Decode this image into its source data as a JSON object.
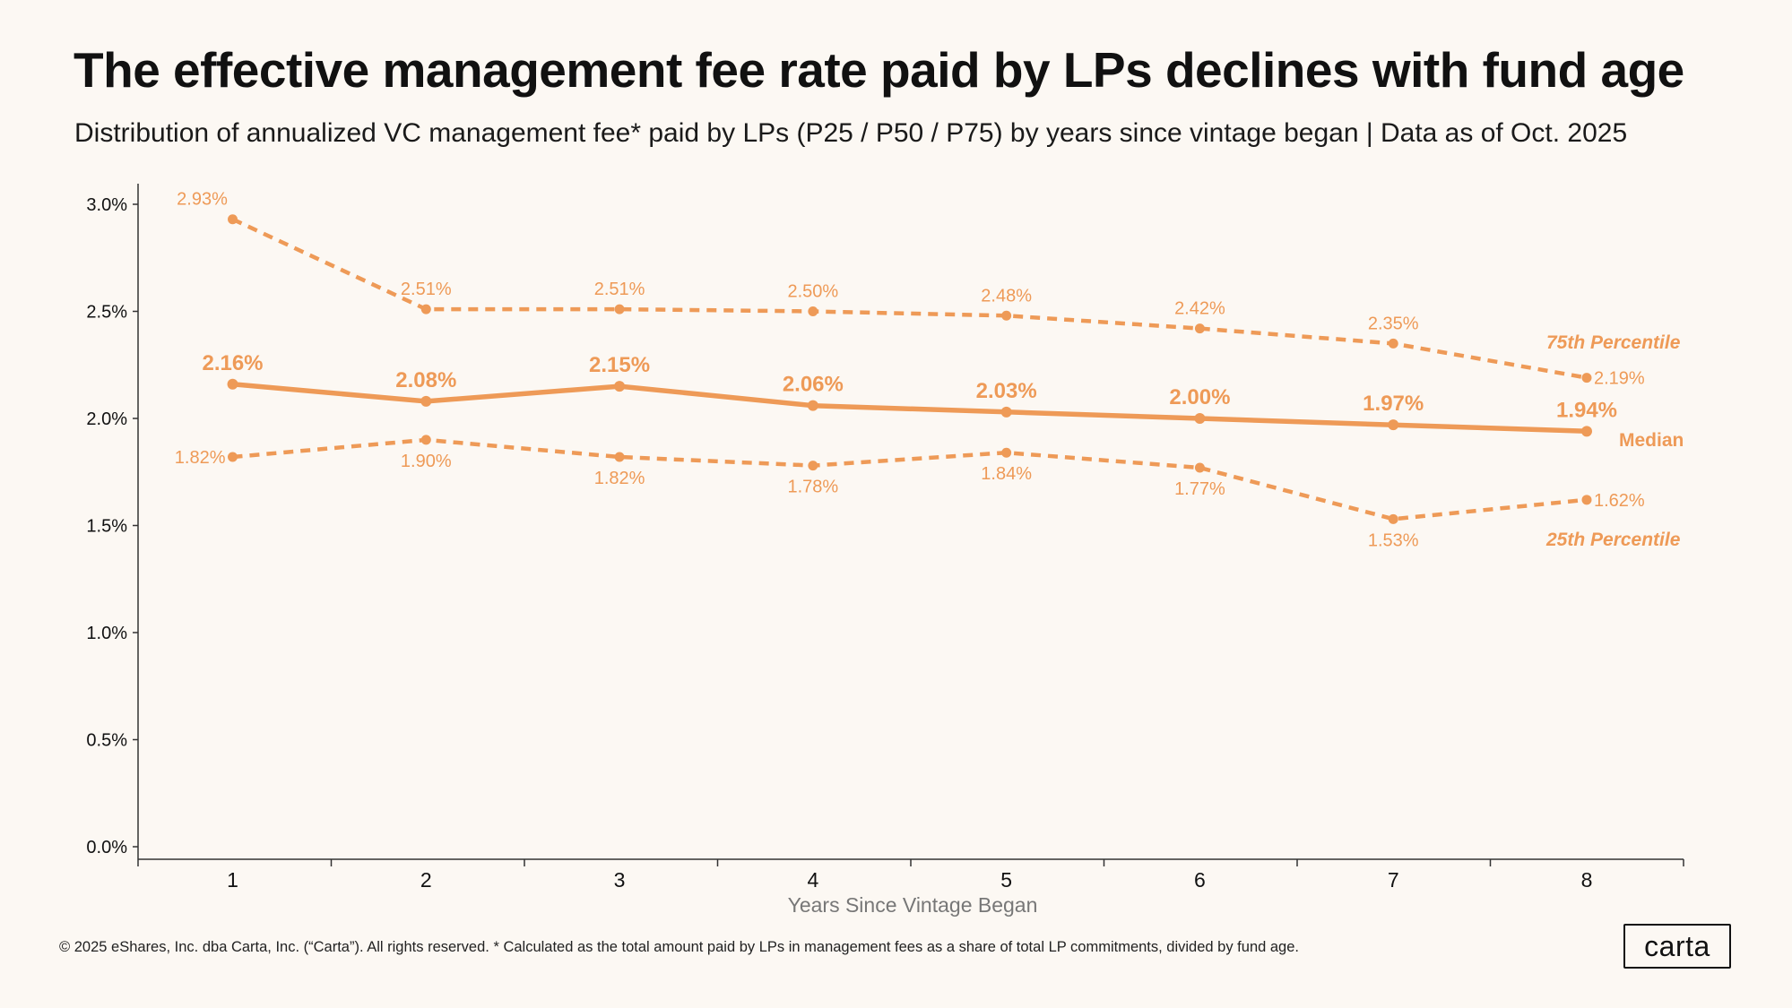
{
  "title": "The effective management fee rate paid by LPs declines with fund age",
  "subtitle": "Distribution of annualized VC management fee* paid by LPs (P25 / P50 / P75) by years since vintage began | Data as of Oct. 2025",
  "footer": "© 2025 eShares, Inc. dba Carta, Inc. (“Carta”). All rights reserved.  * Calculated as the total amount paid by LPs in management fees as a share of total LP commitments, divided by fund age.",
  "logo": "carta",
  "colors": {
    "series": "#ee9a57",
    "axis": "#333333",
    "background": "#fcf8f3"
  },
  "chart_data": {
    "type": "line",
    "title": "The effective management fee rate paid by LPs declines with fund age",
    "xlabel": "Years Since Vintage Began",
    "ylabel": "",
    "categories": [
      "1",
      "2",
      "3",
      "4",
      "5",
      "6",
      "7",
      "8"
    ],
    "ylim": [
      0,
      3.0
    ],
    "yticks": [
      "0.0%",
      "0.5%",
      "1.0%",
      "1.5%",
      "2.0%",
      "2.5%",
      "3.0%"
    ],
    "ytick_values": [
      0,
      0.5,
      1.0,
      1.5,
      2.0,
      2.5,
      3.0
    ],
    "grid": false,
    "series": [
      {
        "name": "75th Percentile",
        "style": "dashed",
        "values": [
          2.93,
          2.51,
          2.51,
          2.5,
          2.48,
          2.42,
          2.35,
          2.19
        ],
        "labels": [
          "2.93%",
          "2.51%",
          "2.51%",
          "2.50%",
          "2.48%",
          "2.42%",
          "2.35%",
          "2.19%"
        ]
      },
      {
        "name": "Median",
        "style": "solid",
        "values": [
          2.16,
          2.08,
          2.15,
          2.06,
          2.03,
          2.0,
          1.97,
          1.94
        ],
        "labels": [
          "2.16%",
          "2.08%",
          "2.15%",
          "2.06%",
          "2.03%",
          "2.00%",
          "1.97%",
          "1.94%"
        ]
      },
      {
        "name": "25th Percentile",
        "style": "dashed",
        "values": [
          1.82,
          1.9,
          1.82,
          1.78,
          1.84,
          1.77,
          1.53,
          1.62
        ],
        "labels": [
          "1.82%",
          "1.90%",
          "1.82%",
          "1.78%",
          "1.84%",
          "1.77%",
          "1.53%",
          "1.62%"
        ]
      }
    ]
  }
}
